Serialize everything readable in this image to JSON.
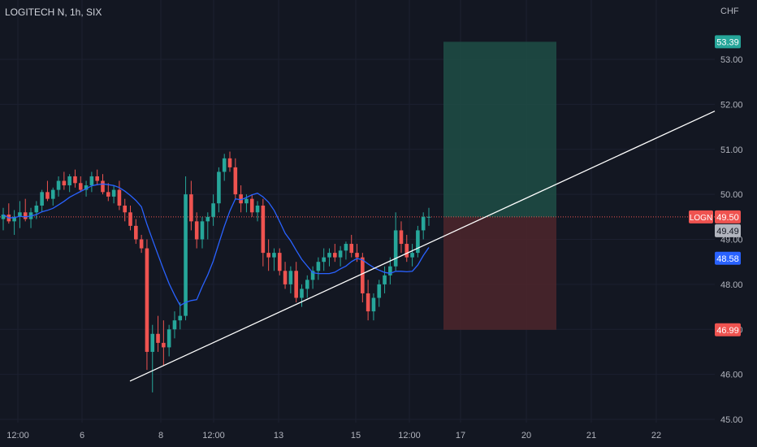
{
  "header": {
    "symbol_title": "LOGITECH N, 1h, SIX",
    "currency": "CHF"
  },
  "colors": {
    "background": "#131722",
    "up": "#26a69a",
    "down": "#ef5350",
    "ma": "#2962ff",
    "trendline": "#ffffff",
    "price_line": "#ef5350",
    "profit_zone": "#1e4d45",
    "loss_zone": "#4d262b"
  },
  "price_labels": {
    "target": "53.39",
    "ticker": "LOGN",
    "last": "49.50",
    "entry": "49.49",
    "ma_value": "48.58",
    "stop": "46.99"
  },
  "chart_data": {
    "type": "candlestick",
    "title": "LOGITECH N, 1h, SIX",
    "y_unit": "CHF",
    "ylim": [
      44.9,
      54.0
    ],
    "y_ticks": [
      "45.00",
      "46.00",
      "47.00",
      "48.00",
      "49.00",
      "50.00",
      "51.00",
      "52.00",
      "53.00"
    ],
    "x_ticks": [
      "12:00",
      "6",
      "8",
      "12:00",
      "13",
      "15",
      "12:00",
      "17",
      "20",
      "21",
      "22"
    ],
    "last_price": 49.5,
    "position": {
      "entry": 49.49,
      "target": 53.39,
      "stop": 46.99
    },
    "moving_average_last": 48.58,
    "trendline": {
      "from_price": 45.85,
      "to_price": 51.85
    },
    "candles_ohlc": [
      [
        49.45,
        49.7,
        49.2,
        49.55
      ],
      [
        49.55,
        49.8,
        49.35,
        49.4
      ],
      [
        49.4,
        49.65,
        49.1,
        49.5
      ],
      [
        49.5,
        49.85,
        49.25,
        49.6
      ],
      [
        49.6,
        49.9,
        49.4,
        49.45
      ],
      [
        49.45,
        49.7,
        49.25,
        49.6
      ],
      [
        49.6,
        49.85,
        49.45,
        49.75
      ],
      [
        49.75,
        50.1,
        49.6,
        50.05
      ],
      [
        50.05,
        50.3,
        49.85,
        49.9
      ],
      [
        49.9,
        50.15,
        49.75,
        50.1
      ],
      [
        50.1,
        50.4,
        49.95,
        50.3
      ],
      [
        50.3,
        50.5,
        50.1,
        50.2
      ],
      [
        50.2,
        50.45,
        50.05,
        50.4
      ],
      [
        50.4,
        50.55,
        50.15,
        50.25
      ],
      [
        50.25,
        50.4,
        50.05,
        50.1
      ],
      [
        50.1,
        50.3,
        49.95,
        50.2
      ],
      [
        50.2,
        50.5,
        50.05,
        50.4
      ],
      [
        50.4,
        50.55,
        50.2,
        50.3
      ],
      [
        50.3,
        50.45,
        50.0,
        50.05
      ],
      [
        50.05,
        50.25,
        49.85,
        49.95
      ],
      [
        49.95,
        50.2,
        49.8,
        50.1
      ],
      [
        50.1,
        50.3,
        49.65,
        49.75
      ],
      [
        49.75,
        49.9,
        49.4,
        49.6
      ],
      [
        49.6,
        49.75,
        49.2,
        49.3
      ],
      [
        49.3,
        49.45,
        48.9,
        49.0
      ],
      [
        49.0,
        49.1,
        48.7,
        48.8
      ],
      [
        48.8,
        49.0,
        46.1,
        46.5
      ],
      [
        46.5,
        47.1,
        45.6,
        46.9
      ],
      [
        46.9,
        47.3,
        46.5,
        46.7
      ],
      [
        46.7,
        47.2,
        46.2,
        46.6
      ],
      [
        46.6,
        47.1,
        46.4,
        47.0
      ],
      [
        47.0,
        47.4,
        46.8,
        47.2
      ],
      [
        47.2,
        47.6,
        47.0,
        47.3
      ],
      [
        47.3,
        50.4,
        47.2,
        50.0
      ],
      [
        50.0,
        50.3,
        49.2,
        49.4
      ],
      [
        49.4,
        49.6,
        48.8,
        49.0
      ],
      [
        49.0,
        49.5,
        48.8,
        49.4
      ],
      [
        49.4,
        49.6,
        49.0,
        49.5
      ],
      [
        49.5,
        50.0,
        49.3,
        49.8
      ],
      [
        49.8,
        50.6,
        49.6,
        50.5
      ],
      [
        50.5,
        50.9,
        50.3,
        50.8
      ],
      [
        50.8,
        50.95,
        50.5,
        50.6
      ],
      [
        50.6,
        50.8,
        49.9,
        50.0
      ],
      [
        50.0,
        50.2,
        49.6,
        49.8
      ],
      [
        49.8,
        50.0,
        49.6,
        49.9
      ],
      [
        49.9,
        50.0,
        49.5,
        49.6
      ],
      [
        49.6,
        49.85,
        49.4,
        49.75
      ],
      [
        49.75,
        49.9,
        48.4,
        48.7
      ],
      [
        48.7,
        49.0,
        48.3,
        48.6
      ],
      [
        48.6,
        48.8,
        48.3,
        48.7
      ],
      [
        48.7,
        48.8,
        48.2,
        48.3
      ],
      [
        48.3,
        48.5,
        47.9,
        48.0
      ],
      [
        48.0,
        48.4,
        47.8,
        48.3
      ],
      [
        48.3,
        48.5,
        47.6,
        47.7
      ],
      [
        47.7,
        48.0,
        47.5,
        47.9
      ],
      [
        47.9,
        48.2,
        47.7,
        48.1
      ],
      [
        48.1,
        48.4,
        47.9,
        48.3
      ],
      [
        48.3,
        48.6,
        48.1,
        48.5
      ],
      [
        48.5,
        48.8,
        48.3,
        48.6
      ],
      [
        48.6,
        48.8,
        48.4,
        48.7
      ],
      [
        48.7,
        48.9,
        48.5,
        48.6
      ],
      [
        48.6,
        48.85,
        48.4,
        48.75
      ],
      [
        48.75,
        48.95,
        48.55,
        48.9
      ],
      [
        48.9,
        49.1,
        48.6,
        48.7
      ],
      [
        48.7,
        48.9,
        48.5,
        48.6
      ],
      [
        48.6,
        48.7,
        47.6,
        47.8
      ],
      [
        47.8,
        48.1,
        47.2,
        47.4
      ],
      [
        47.4,
        47.8,
        47.2,
        47.7
      ],
      [
        47.7,
        48.1,
        47.5,
        48.0
      ],
      [
        48.0,
        48.4,
        47.8,
        48.2
      ],
      [
        48.2,
        48.6,
        48.0,
        48.4
      ],
      [
        48.4,
        49.6,
        48.3,
        49.2
      ],
      [
        49.2,
        49.4,
        48.7,
        48.9
      ],
      [
        48.9,
        49.1,
        48.5,
        48.6
      ],
      [
        48.6,
        48.9,
        48.4,
        48.7
      ],
      [
        48.7,
        49.3,
        48.6,
        49.2
      ],
      [
        49.2,
        49.6,
        49.0,
        49.5
      ],
      [
        49.5,
        49.7,
        49.3,
        49.5
      ]
    ]
  }
}
